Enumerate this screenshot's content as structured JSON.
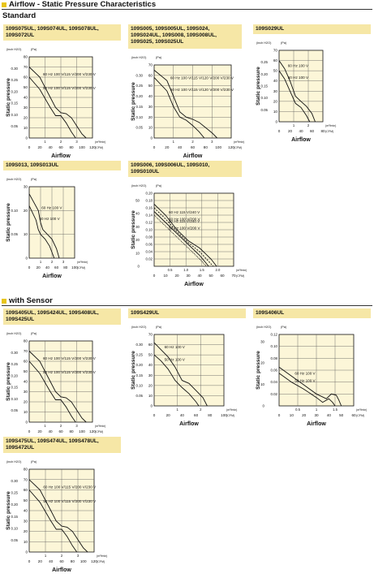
{
  "title": "Airflow - Static Pressure Characteristics",
  "standard_label": "Standard",
  "sensor_label": "with Sensor",
  "chart_data": [
    {
      "id": "c1",
      "type": "line",
      "model": "109S075UL, 109S074UL, 109S078UL,\n109S072UL",
      "yunit_left": "(inch H2O)",
      "yunit_right": "(Pa)",
      "ylabel": "Static pressure",
      "xlabel": "Airflow",
      "ylim_pa": [
        0,
        80
      ],
      "yticks_pa": [
        0,
        10,
        20,
        30,
        40,
        50,
        60,
        70,
        80
      ],
      "yticks_in": [
        "0.05",
        "0.10",
        "0.15",
        "0.20",
        "0.25",
        "0.30"
      ],
      "xlim_cfm": [
        0,
        120
      ],
      "xticks_cfm": [
        0,
        20,
        40,
        60,
        80,
        100,
        120
      ],
      "xticks_m3": [
        "1",
        "2",
        "3"
      ],
      "xunit_m3": "(m³/min)",
      "xunit_cfm": "(CFM)",
      "series": [
        {
          "name": "60 Hz 100 V/115 V/200 V/230 V",
          "x": [
            0,
            20,
            40,
            50,
            60,
            70,
            80,
            90,
            100,
            108
          ],
          "y": [
            70,
            60,
            40,
            30,
            25,
            24,
            20,
            12,
            4,
            0
          ]
        },
        {
          "name": "50 Hz 100 V/115 V/200 V/230 V",
          "x": [
            0,
            20,
            40,
            50,
            60,
            70,
            80,
            88
          ],
          "y": [
            60,
            48,
            30,
            22,
            22,
            15,
            6,
            0
          ]
        }
      ]
    },
    {
      "id": "c2",
      "type": "line",
      "model": "109S005, 109S005UL, 109S024,\n109S024UL, 109S008, 109S008UL,\n109S025, 109S025UL",
      "yunit_left": "(inch H2O)",
      "yunit_right": "(Pa)",
      "ylabel": "Static pressure",
      "xlabel": "Airflow",
      "ylim_pa": [
        0,
        70
      ],
      "yticks_pa": [
        0,
        10,
        20,
        30,
        40,
        50,
        60,
        70
      ],
      "yticks_in": [
        "0.05",
        "0.10",
        "0.15",
        "0.20",
        "0.25",
        "0.30"
      ],
      "xlim_cfm": [
        0,
        120
      ],
      "xticks_cfm": [
        0,
        20,
        40,
        60,
        80,
        100,
        120
      ],
      "xticks_m3": [
        "1",
        "2",
        "3"
      ],
      "xunit_m3": "(m³/min)",
      "xunit_cfm": "(CFM)",
      "series": [
        {
          "name": "60 Hz 100 V/115 V/120 V/200 V/230 V",
          "x": [
            0,
            20,
            30,
            40,
            50,
            60,
            70,
            80,
            90,
            98
          ],
          "y": [
            65,
            55,
            40,
            25,
            20,
            18,
            15,
            10,
            5,
            0
          ]
        },
        {
          "name": "50 Hz 100 V/115 V/120 V/200 V/230 V",
          "x": [
            0,
            20,
            30,
            40,
            50,
            60,
            70,
            78
          ],
          "y": [
            58,
            45,
            30,
            20,
            17,
            12,
            6,
            0
          ]
        }
      ]
    },
    {
      "id": "c3",
      "type": "line",
      "model": "109S029UL",
      "yunit_left": "(inch H2O)",
      "yunit_right": "(Pa)",
      "ylabel": "Static pressure",
      "xlabel": "Airflow",
      "ylim_pa": [
        0,
        70
      ],
      "yticks_pa": [
        0,
        10,
        20,
        30,
        40,
        50,
        60,
        70
      ],
      "yticks_in": [
        "0.05",
        "0.10",
        "0.15",
        "0.20",
        "0.25"
      ],
      "xlim_cfm": [
        0,
        80
      ],
      "xticks_cfm": [
        0,
        20,
        40,
        60,
        80
      ],
      "xticks_m3": [
        "1",
        "2"
      ],
      "xunit_m3": "(m³/min)",
      "xunit_cfm": "(CFM)",
      "series": [
        {
          "name": "60 Hz 100 V",
          "x": [
            0,
            10,
            20,
            30,
            40,
            50,
            60,
            66
          ],
          "y": [
            60,
            52,
            40,
            25,
            20,
            15,
            8,
            0
          ]
        },
        {
          "name": "50 Hz 100 V",
          "x": [
            0,
            10,
            20,
            30,
            40,
            50,
            56
          ],
          "y": [
            50,
            42,
            30,
            18,
            14,
            6,
            0
          ]
        }
      ]
    },
    {
      "id": "c4",
      "type": "line",
      "model": "109S013, 109S013UL",
      "yunit_left": "(inch H2O)",
      "yunit_right": "(Pa)",
      "ylabel": "Static pressure",
      "xlabel": "Airflow",
      "ylim_pa": [
        0,
        30
      ],
      "yticks_pa": [
        0,
        10,
        20,
        30
      ],
      "yticks_in": [
        "0.05",
        "0.10"
      ],
      "xlim_cfm": [
        0,
        100
      ],
      "xticks_cfm": [
        0,
        20,
        40,
        60,
        80,
        100
      ],
      "xticks_m3": [
        "1",
        "2",
        "3"
      ],
      "xunit_m3": "(m³/min)",
      "xunit_cfm": "(CFM)",
      "series": [
        {
          "name": "60 Hz 100 V",
          "x": [
            0,
            20,
            25,
            30,
            40,
            50,
            60,
            66
          ],
          "y": [
            27,
            20,
            15,
            12,
            10,
            8,
            4,
            0
          ]
        },
        {
          "name": "50 Hz 100 V",
          "x": [
            0,
            15,
            20,
            25,
            35,
            45,
            55
          ],
          "y": [
            22,
            16,
            12,
            10,
            8,
            5,
            0
          ]
        }
      ]
    },
    {
      "id": "c5",
      "type": "line",
      "model": "109S006, 109S006UL, 109S010,\n109S010UL",
      "yunit_left": "(inch H2O)",
      "yunit_right": "(Pa)",
      "ylabel": "Static pressure",
      "xlabel": "Airflow",
      "ylim_in": [
        0,
        0.2
      ],
      "yticks_in": [
        "0.02",
        "0.04",
        "0.06",
        "0.08",
        "0.10",
        "0.12",
        "0.14",
        "0.16",
        "0.18",
        "0.20"
      ],
      "yticks_pa": [
        0,
        10,
        20,
        30,
        40,
        50
      ],
      "xlim_cfm": [
        0,
        70
      ],
      "xticks_cfm": [
        0,
        10,
        20,
        30,
        40,
        50,
        60,
        70
      ],
      "xticks_m3": [
        "0.5",
        "1.0",
        "1.5",
        "2.0"
      ],
      "xunit_m3": "(m³/min)",
      "xunit_cfm": "(CFM)",
      "series": [
        {
          "name": "60 Hz 115 V/240 V",
          "x": [
            0,
            10,
            20,
            30,
            40,
            50,
            55
          ],
          "y": [
            0.17,
            0.14,
            0.1,
            0.07,
            0.05,
            0.02,
            0
          ]
        },
        {
          "name": "50 Hz 115 V/240 V",
          "x": [
            0,
            10,
            20,
            30,
            40,
            48
          ],
          "y": [
            0.15,
            0.12,
            0.09,
            0.06,
            0.03,
            0
          ]
        },
        {
          "name": "60 Hz 100 V/200 V",
          "x": [
            0,
            10,
            20,
            30,
            40,
            52
          ],
          "y": [
            0.16,
            0.13,
            0.095,
            0.065,
            0.04,
            0
          ]
        },
        {
          "name": "50 Hz 100 V/200 V",
          "x": [
            0,
            10,
            20,
            30,
            40,
            46
          ],
          "y": [
            0.14,
            0.11,
            0.08,
            0.05,
            0.02,
            0
          ]
        }
      ]
    },
    {
      "id": "c6",
      "type": "line",
      "model": "109S405UL, 109S424UL, 109S408UL,\n109S425UL",
      "yunit_left": "(inch H2O)",
      "yunit_right": "(Pa)",
      "ylabel": "Static pressure",
      "xlabel": "Airflow",
      "ylim_pa": [
        0,
        80
      ],
      "yticks_pa": [
        0,
        10,
        20,
        30,
        40,
        50,
        60,
        70,
        80
      ],
      "yticks_in": [
        "0.05",
        "0.10",
        "0.15",
        "0.20",
        "0.25",
        "0.30"
      ],
      "xlim_cfm": [
        0,
        120
      ],
      "xticks_cfm": [
        0,
        20,
        40,
        60,
        80,
        100,
        120
      ],
      "xticks_m3": [
        "1",
        "2",
        "3"
      ],
      "xunit_m3": "(m³/min)",
      "xunit_cfm": "(CFM)",
      "series": [
        {
          "name": "60 Hz 100 V/115 V/200 V/230 V",
          "x": [
            0,
            20,
            40,
            50,
            60,
            70,
            80,
            90,
            100,
            108
          ],
          "y": [
            70,
            60,
            40,
            30,
            25,
            24,
            20,
            12,
            4,
            0
          ]
        },
        {
          "name": "50 Hz 100 V/115 V/200 V/230 V",
          "x": [
            0,
            20,
            40,
            50,
            60,
            70,
            80,
            88
          ],
          "y": [
            60,
            48,
            30,
            22,
            22,
            15,
            6,
            0
          ]
        }
      ]
    },
    {
      "id": "c7",
      "type": "line",
      "model": "109S429UL",
      "yunit_left": "(inch H2O)",
      "yunit_right": "(Pa)",
      "ylabel": "Static pressure",
      "xlabel": "Airflow",
      "ylim_pa": [
        0,
        70
      ],
      "yticks_pa": [
        0,
        10,
        20,
        30,
        40,
        50,
        60,
        70
      ],
      "yticks_in": [
        "0.05",
        "0.10",
        "0.15",
        "0.20",
        "0.25",
        "0.30"
      ],
      "xlim_cfm": [
        0,
        100
      ],
      "xticks_cfm": [
        0,
        20,
        40,
        60,
        80,
        100
      ],
      "xticks_m3": [
        "1",
        "2"
      ],
      "xunit_m3": "(m³/min)",
      "xunit_cfm": "(CFM)",
      "series": [
        {
          "name": "60 Hz 100 V",
          "x": [
            0,
            10,
            20,
            30,
            40,
            50,
            60,
            70,
            76
          ],
          "y": [
            62,
            55,
            48,
            38,
            25,
            22,
            15,
            8,
            0
          ]
        },
        {
          "name": "50 Hz 100 V",
          "x": [
            0,
            10,
            20,
            30,
            40,
            50,
            60,
            64
          ],
          "y": [
            50,
            44,
            36,
            25,
            18,
            12,
            4,
            0
          ]
        }
      ]
    },
    {
      "id": "c8",
      "type": "line",
      "model": "109S406UL",
      "yunit_left": "(inch H2O)",
      "yunit_right": "(Pa)",
      "ylabel": "Static pressure",
      "xlabel": "Airflow",
      "ylim_in": [
        0,
        0.12
      ],
      "yticks_in": [
        "0.02",
        "0.04",
        "0.06",
        "0.08",
        "0.10",
        "0.12"
      ],
      "yticks_pa": [
        0,
        10,
        20,
        30
      ],
      "xlim_cfm": [
        0,
        60
      ],
      "xticks_cfm": [
        0,
        10,
        20,
        30,
        40,
        50,
        60
      ],
      "xticks_m3": [
        "0.5",
        "1",
        "1.5"
      ],
      "xunit_m3": "(m³/min)",
      "xunit_cfm": "(CFM)",
      "series": [
        {
          "name": "60 Hz 100 V",
          "x": [
            0,
            10,
            20,
            30,
            38,
            42,
            46,
            48,
            50
          ],
          "y": [
            0.065,
            0.05,
            0.035,
            0.02,
            0.012,
            0.02,
            0.018,
            0.01,
            0
          ]
        },
        {
          "name": "50 Hz 100 V",
          "x": [
            0,
            10,
            20,
            30,
            35,
            40,
            43,
            45
          ],
          "y": [
            0.055,
            0.04,
            0.028,
            0.014,
            0.006,
            0.012,
            0.006,
            0
          ]
        }
      ]
    },
    {
      "id": "c9",
      "type": "line",
      "model": "109S475UL, 109S474UL, 109S478UL,\n109S472UL",
      "yunit_left": "(inch H2O)",
      "yunit_right": "(Pa)",
      "ylabel": "Static pressure",
      "xlabel": "Airflow",
      "ylim_pa": [
        0,
        80
      ],
      "yticks_pa": [
        0,
        10,
        20,
        30,
        40,
        50,
        60,
        70,
        80
      ],
      "yticks_in": [
        "0.05",
        "0.10",
        "0.15",
        "0.20",
        "0.25",
        "0.30"
      ],
      "xlim_cfm": [
        0,
        120
      ],
      "xticks_cfm": [
        0,
        20,
        40,
        60,
        80,
        100,
        120
      ],
      "xticks_m3": [
        "1",
        "2",
        "3"
      ],
      "xunit_m3": "(m³/min)",
      "xunit_cfm": "(CFM)",
      "series": [
        {
          "name": "60 Hz 100 V/115 V/200 V/230 V",
          "x": [
            0,
            20,
            40,
            50,
            60,
            70,
            80,
            90,
            100,
            108
          ],
          "y": [
            70,
            60,
            40,
            30,
            25,
            24,
            20,
            12,
            4,
            0
          ]
        },
        {
          "name": "50 Hz 100 V/115 V/200 V/230 V",
          "x": [
            0,
            20,
            40,
            50,
            60,
            70,
            80,
            88
          ],
          "y": [
            60,
            48,
            30,
            22,
            22,
            15,
            6,
            0
          ]
        }
      ]
    }
  ]
}
